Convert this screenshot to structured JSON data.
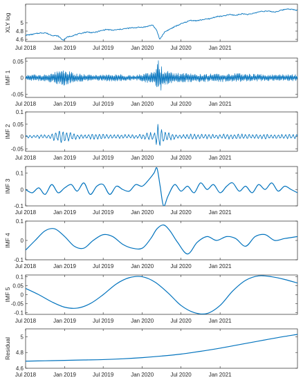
{
  "chart_data": [
    {
      "type": "line",
      "panel": "XLY log",
      "ylabel": "XLY log",
      "yticks": [
        4.6,
        4.8,
        5
      ],
      "ylim": [
        4.55,
        5.45
      ],
      "xticks": [
        "Jul 2018",
        "Jan 2019",
        "Jul 2019",
        "Jan 2020",
        "Jul 2020",
        "Jan 2021"
      ],
      "xlim": [
        "2018-07-01",
        "2021-12-31"
      ],
      "series": [
        {
          "x": [
            "2018-07-01",
            "2018-08-01",
            "2018-09-01",
            "2018-10-01",
            "2018-11-01",
            "2018-12-01",
            "2018-12-24",
            "2019-01-15",
            "2019-02-15",
            "2019-03-15",
            "2019-04-15",
            "2019-05-15",
            "2019-06-15",
            "2019-07-15",
            "2019-08-15",
            "2019-09-15",
            "2019-10-15",
            "2019-11-15",
            "2019-12-15",
            "2020-01-15",
            "2020-02-19",
            "2020-03-10",
            "2020-03-23",
            "2020-04-15",
            "2020-05-15",
            "2020-06-15",
            "2020-07-15",
            "2020-08-15",
            "2020-09-15",
            "2020-10-15",
            "2020-11-15",
            "2020-12-15",
            "2021-01-15",
            "2021-02-15",
            "2021-03-15",
            "2021-04-15",
            "2021-05-15",
            "2021-06-15",
            "2021-07-15",
            "2021-08-15",
            "2021-09-15",
            "2021-10-15",
            "2021-11-15",
            "2021-12-31"
          ],
          "values": [
            4.7,
            4.72,
            4.75,
            4.76,
            4.7,
            4.68,
            4.58,
            4.66,
            4.7,
            4.74,
            4.78,
            4.76,
            4.8,
            4.84,
            4.82,
            4.84,
            4.86,
            4.88,
            4.89,
            4.9,
            4.95,
            4.8,
            4.6,
            4.78,
            4.86,
            4.94,
            5.0,
            5.06,
            5.05,
            5.08,
            5.1,
            5.15,
            5.16,
            5.2,
            5.18,
            5.22,
            5.2,
            5.24,
            5.28,
            5.28,
            5.26,
            5.3,
            5.34,
            5.3
          ]
        }
      ]
    },
    {
      "type": "line",
      "panel": "IMF 1",
      "ylabel": "IMF 1",
      "yticks": [
        -0.05,
        0,
        0.05
      ],
      "ylim": [
        -0.06,
        0.06
      ],
      "xticks": [
        "Jul 2018",
        "Jan 2019",
        "Jul 2019",
        "Jan 2020",
        "Jul 2020",
        "Jan 2021"
      ],
      "xlim": [
        "2018-07-01",
        "2021-12-31"
      ],
      "series": [
        {
          "x": [
            "2018-07-01",
            "2018-10-15",
            "2018-12-24",
            "2019-03-01",
            "2019-06-01",
            "2019-09-01",
            "2019-12-01",
            "2020-02-25",
            "2020-03-16",
            "2020-04-15",
            "2020-06-15",
            "2020-09-15",
            "2020-12-15",
            "2021-03-15",
            "2021-06-15",
            "2021-09-15",
            "2021-12-31"
          ],
          "values": [
            0.008,
            0.012,
            0.025,
            0.012,
            0.01,
            0.011,
            0.007,
            0.02,
            0.055,
            0.022,
            0.014,
            0.013,
            0.012,
            0.014,
            0.011,
            0.01,
            0.01
          ],
          "note_kind": "amplitude envelope"
        }
      ]
    },
    {
      "type": "line",
      "panel": "IMF 2",
      "ylabel": "IMF 2",
      "yticks": [
        -0.05,
        0,
        0.05,
        0.1
      ],
      "ylim": [
        -0.06,
        0.1
      ],
      "xticks": [
        "Jul 2018",
        "Jan 2019",
        "Jul 2019",
        "Jan 2020",
        "Jul 2020",
        "Jan 2021"
      ],
      "xlim": [
        "2018-07-01",
        "2021-12-31"
      ],
      "series": [
        {
          "x": [
            "2018-07-01",
            "2018-10-15",
            "2018-12-20",
            "2019-03-01",
            "2019-06-01",
            "2019-09-01",
            "2019-12-01",
            "2020-02-25",
            "2020-03-20",
            "2020-04-25",
            "2020-06-15",
            "2020-09-15",
            "2020-12-15",
            "2021-03-15",
            "2021-06-15",
            "2021-09-15",
            "2021-12-31"
          ],
          "values": [
            0.006,
            0.01,
            0.03,
            0.01,
            0.012,
            0.01,
            0.008,
            0.02,
            0.065,
            0.025,
            0.008,
            0.012,
            0.01,
            0.012,
            0.01,
            0.012,
            0.01
          ],
          "note_kind": "amplitude envelope"
        }
      ]
    },
    {
      "type": "line",
      "panel": "IMF 3",
      "ylabel": "IMF 3",
      "yticks": [
        -0.1,
        0,
        0.1
      ],
      "ylim": [
        -0.1,
        0.14
      ],
      "xticks": [
        "Jul 2018",
        "Jan 2019",
        "Jul 2019",
        "Jan 2020",
        "Jul 2020",
        "Jan 2021"
      ],
      "xlim": [
        "2018-07-01",
        "2021-12-31"
      ],
      "series": [
        {
          "x": [
            "2018-07-01",
            "2018-08-01",
            "2018-09-01",
            "2018-10-01",
            "2018-11-01",
            "2018-12-01",
            "2019-01-01",
            "2019-02-01",
            "2019-03-01",
            "2019-04-01",
            "2019-05-01",
            "2019-06-01",
            "2019-07-01",
            "2019-08-01",
            "2019-09-01",
            "2019-10-01",
            "2019-11-01",
            "2019-12-01",
            "2020-01-01",
            "2020-02-01",
            "2020-02-25",
            "2020-03-10",
            "2020-03-25",
            "2020-04-10",
            "2020-05-01",
            "2020-06-01",
            "2020-07-01",
            "2020-08-01",
            "2020-09-01",
            "2020-10-01",
            "2020-11-01",
            "2020-12-01",
            "2021-01-01",
            "2021-02-01",
            "2021-03-01",
            "2021-04-01",
            "2021-05-01",
            "2021-06-01",
            "2021-07-01",
            "2021-08-01",
            "2021-09-01",
            "2021-10-01",
            "2021-11-01",
            "2021-12-01",
            "2021-12-31"
          ],
          "values": [
            0.0,
            -0.02,
            0.01,
            -0.03,
            0.03,
            -0.02,
            0.01,
            0.03,
            -0.01,
            0.04,
            -0.03,
            0.02,
            0.03,
            -0.03,
            0.02,
            0.0,
            -0.01,
            0.03,
            0.02,
            0.06,
            0.1,
            0.13,
            0.02,
            -0.1,
            -0.04,
            0.03,
            -0.01,
            0.02,
            -0.02,
            0.04,
            0.0,
            0.03,
            -0.02,
            0.02,
            0.04,
            -0.01,
            0.02,
            -0.02,
            0.03,
            0.0,
            0.04,
            -0.01,
            0.02,
            0.0,
            -0.02
          ]
        }
      ]
    },
    {
      "type": "line",
      "panel": "IMF 4",
      "ylabel": "IMF 4",
      "yticks": [
        -0.1,
        0,
        0.1
      ],
      "ylim": [
        -0.1,
        0.1
      ],
      "xticks": [
        "Jul 2018",
        "Jan 2019",
        "Jul 2019",
        "Jan 2020",
        "Jul 2020",
        "Jan 2021"
      ],
      "xlim": [
        "2018-07-01",
        "2021-12-31"
      ],
      "series": [
        {
          "x": [
            "2018-07-01",
            "2018-08-15",
            "2018-10-01",
            "2018-11-15",
            "2019-01-01",
            "2019-02-15",
            "2019-04-01",
            "2019-05-15",
            "2019-07-01",
            "2019-08-15",
            "2019-10-01",
            "2019-11-15",
            "2020-01-01",
            "2020-02-10",
            "2020-03-10",
            "2020-04-10",
            "2020-05-10",
            "2020-06-15",
            "2020-08-01",
            "2020-09-15",
            "2020-11-01",
            "2020-12-15",
            "2021-02-01",
            "2021-03-15",
            "2021-05-01",
            "2021-06-15",
            "2021-08-01",
            "2021-09-15",
            "2021-11-01",
            "2021-12-31"
          ],
          "values": [
            -0.05,
            0.0,
            0.05,
            0.06,
            0.02,
            -0.03,
            -0.04,
            0.0,
            0.03,
            0.02,
            -0.02,
            -0.04,
            -0.04,
            0.01,
            0.06,
            0.08,
            0.05,
            -0.01,
            -0.07,
            -0.01,
            0.02,
            0.0,
            0.02,
            0.01,
            -0.03,
            0.02,
            0.03,
            0.0,
            0.01,
            0.02
          ]
        }
      ]
    },
    {
      "type": "line",
      "panel": "IMF 5",
      "ylabel": "IMF 5",
      "yticks": [
        -0.1,
        -0.05,
        0,
        0.05,
        0.1
      ],
      "ylim": [
        -0.11,
        0.11
      ],
      "xticks": [
        "Jul 2018",
        "Jan 2019",
        "Jul 2019",
        "Jan 2020",
        "Jul 2020",
        "Jan 2021"
      ],
      "xlim": [
        "2018-07-01",
        "2021-12-31"
      ],
      "series": [
        {
          "x": [
            "2018-07-01",
            "2018-09-01",
            "2018-11-01",
            "2019-01-01",
            "2019-03-01",
            "2019-05-01",
            "2019-07-01",
            "2019-09-01",
            "2019-11-01",
            "2020-01-01",
            "2020-03-01",
            "2020-05-01",
            "2020-07-01",
            "2020-09-01",
            "2020-11-01",
            "2021-01-01",
            "2021-03-01",
            "2021-05-01",
            "2021-07-01",
            "2021-09-01",
            "2021-11-01",
            "2021-12-31"
          ],
          "values": [
            0.035,
            0.0,
            -0.04,
            -0.07,
            -0.075,
            -0.05,
            0.0,
            0.06,
            0.095,
            0.1,
            0.07,
            0.01,
            -0.06,
            -0.1,
            -0.105,
            -0.06,
            0.02,
            0.08,
            0.105,
            0.1,
            0.085,
            0.065
          ]
        }
      ]
    },
    {
      "type": "line",
      "panel": "Residual",
      "ylabel": "Residual",
      "yticks": [
        4.6,
        4.8,
        5
      ],
      "ylim": [
        4.6,
        5.1
      ],
      "xticks": [
        "Jul 2018",
        "Jan 2019",
        "Jul 2019",
        "Jan 2020",
        "Jul 2020",
        "Jan 2021"
      ],
      "xlim": [
        "2018-07-01",
        "2021-12-31"
      ],
      "series": [
        {
          "x": [
            "2018-07-01",
            "2018-10-01",
            "2019-01-01",
            "2019-04-01",
            "2019-07-01",
            "2019-10-01",
            "2020-01-01",
            "2020-04-01",
            "2020-07-01",
            "2020-10-01",
            "2021-01-01",
            "2021-04-01",
            "2021-07-01",
            "2021-10-01",
            "2021-12-31"
          ],
          "values": [
            4.69,
            4.695,
            4.7,
            4.705,
            4.71,
            4.72,
            4.735,
            4.755,
            4.78,
            4.815,
            4.855,
            4.9,
            4.945,
            4.99,
            5.03
          ]
        }
      ]
    }
  ]
}
